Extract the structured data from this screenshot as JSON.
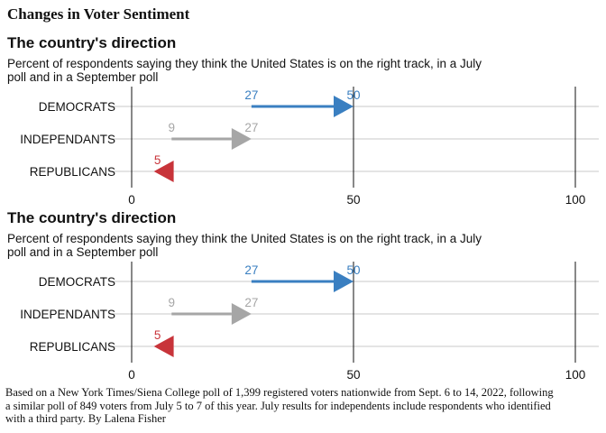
{
  "title": "Changes in Voter Sentiment",
  "footer": "Based on a New York Times/Siena College poll of 1,399 registered voters nationwide from Sept. 6 to 14, 2022, following a similar poll of 849 voters from July 5 to 7 of this year. July results for independents include respondents who identified with a third party. By Lalena Fisher",
  "colors": {
    "democrats": "#3a7fc1",
    "independants": "#a6a6a6",
    "republicans": "#c8343a"
  },
  "chart_data": [
    {
      "type": "arrow",
      "title": "The country's direction",
      "subtitle": "Percent of respondents saying they think the United States is on the right track, in a July poll and in a September poll",
      "xlim": [
        0,
        100
      ],
      "xticks": [
        0,
        50,
        100
      ],
      "grid": true,
      "series": [
        {
          "label": "DEMOCRATS",
          "from": 27,
          "to": 50,
          "color": "#3a7fc1"
        },
        {
          "label": "INDEPENDANTS",
          "from": 9,
          "to": 27,
          "color": "#a6a6a6"
        },
        {
          "label": "REPUBLICANS",
          "from": 9,
          "to": 5,
          "color": "#c8343a"
        }
      ]
    },
    {
      "type": "arrow",
      "title": "The country's direction",
      "subtitle": "Percent of respondents saying they think the United States is on the right track, in a July poll and in a September poll",
      "xlim": [
        0,
        100
      ],
      "xticks": [
        0,
        50,
        100
      ],
      "grid": true,
      "series": [
        {
          "label": "DEMOCRATS",
          "from": 27,
          "to": 50,
          "color": "#3a7fc1"
        },
        {
          "label": "INDEPENDANTS",
          "from": 9,
          "to": 27,
          "color": "#a6a6a6"
        },
        {
          "label": "REPUBLICANS",
          "from": 9,
          "to": 5,
          "color": "#c8343a"
        }
      ]
    }
  ]
}
